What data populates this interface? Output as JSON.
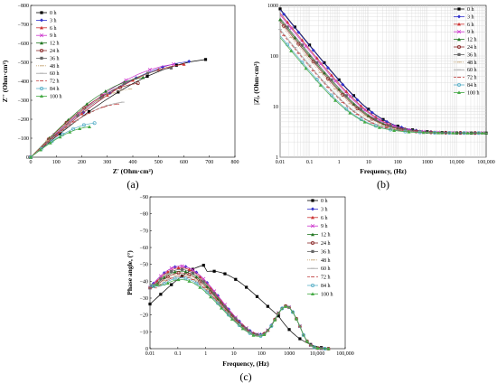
{
  "series_names": [
    "0 h",
    "3 h",
    "6 h",
    "9 h",
    "12 h",
    "24 h",
    "36 h",
    "48 h",
    "60 h",
    "72 h",
    "84 h",
    "100 h"
  ],
  "series_colors": [
    "#000000",
    "#3333cc",
    "#cc3333",
    "#cc33cc",
    "#227722",
    "#8b2a2a",
    "#666666",
    "#c8a878",
    "#a0a0a0",
    "#c04040",
    "#5ab0c8",
    "#44aa44"
  ],
  "chart_data": [
    {
      "panel_label": "(a)",
      "type": "scatter",
      "xlabel": "Z' (Ohm·cm²)",
      "ylabel": "Z'' (Ohm·cm²)",
      "xlim": [
        0,
        800
      ],
      "ylim": [
        0,
        -800
      ],
      "x_ticks": [
        "0",
        "100",
        "200",
        "300",
        "400",
        "500",
        "600",
        "700",
        "800"
      ],
      "y_ticks": [
        "0",
        "−100",
        "−200",
        "−300",
        "−400",
        "−500",
        "−600",
        "−700",
        "−800"
      ],
      "series_endpoints": [
        {
          "name": "0 h",
          "x": 685,
          "y": -515
        },
        {
          "name": "3 h",
          "x": 620,
          "y": -505
        },
        {
          "name": "6 h",
          "x": 600,
          "y": -490
        },
        {
          "name": "9 h",
          "x": 560,
          "y": -490
        },
        {
          "name": "12 h",
          "x": 440,
          "y": -420
        },
        {
          "name": "24 h",
          "x": 420,
          "y": -390
        },
        {
          "name": "36 h",
          "x": 550,
          "y": -470
        },
        {
          "name": "48 h",
          "x": 390,
          "y": -360
        },
        {
          "name": "60 h",
          "x": 360,
          "y": -290
        },
        {
          "name": "72 h",
          "x": 340,
          "y": -280
        },
        {
          "name": "84 h",
          "x": 250,
          "y": -180
        },
        {
          "name": "100 h",
          "x": 230,
          "y": -160
        }
      ]
    },
    {
      "panel_label": "(b)",
      "type": "line",
      "xlabel": "Frequency, (Hz)",
      "ylabel": "|Z|, (Ohm·cm²)",
      "x_scale": "log",
      "y_scale": "log",
      "xlim": [
        0.01,
        100000
      ],
      "ylim": [
        1,
        1000
      ],
      "x_ticks": [
        "0.01",
        "0.1",
        "1",
        "10",
        "100",
        "1000",
        "10,000",
        "100,000"
      ],
      "y_ticks": [
        "1",
        "10",
        "100",
        "1000"
      ],
      "low_freq_values": {
        "0 h": 850,
        "3 h": 820,
        "6 h": 700,
        "9 h": 650,
        "12 h": 520,
        "24 h": 480,
        "36 h": 560,
        "48 h": 430,
        "60 h": 330,
        "72 h": 310,
        "84 h": 250,
        "100 h": 230
      },
      "high_freq_value": 3
    },
    {
      "panel_label": "(c)",
      "type": "line",
      "xlabel": "Frequency, (Hz)",
      "ylabel": "Phase angle, (°)",
      "x_scale": "log",
      "xlim": [
        0.01,
        100000
      ],
      "ylim": [
        0,
        -90
      ],
      "x_ticks": [
        "0.01",
        "0.1",
        "1",
        "10",
        "100",
        "1000",
        "10,000",
        "100,000"
      ],
      "y_ticks": [
        "−90",
        "−80",
        "−70",
        "−60",
        "−50",
        "−40",
        "−30",
        "−20",
        "−10",
        "0"
      ],
      "peak_values": {
        "0 h": -46,
        "3 h": -49,
        "6 h": -48,
        "9 h": -49,
        "12 h": -46,
        "24 h": -45,
        "36 h": -47,
        "48 h": -44,
        "60 h": -43,
        "72 h": -43,
        "84 h": -42,
        "100 h": -41
      }
    }
  ]
}
